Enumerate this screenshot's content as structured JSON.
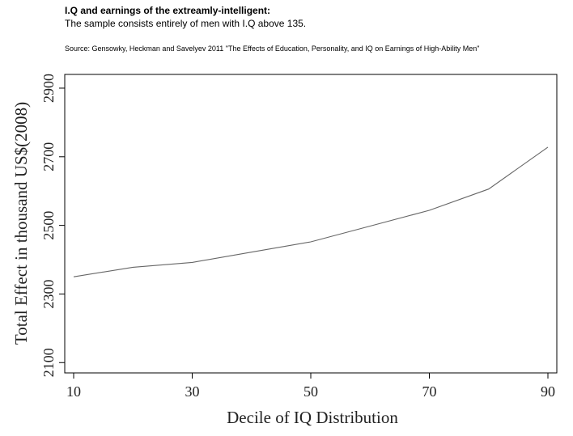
{
  "header": {
    "title": "I.Q and earnings of the extreamly-intelligent:",
    "subtitle": "The sample consists entirely of men with I.Q above 135.",
    "source": "Source: Gensowky, Heckman and Savelyev 2011 \"The Effects of Education, Personality, and IQ on Earnings of High-Ability Men\""
  },
  "chart_data": {
    "type": "line",
    "title": "I.Q and earnings of the extreamly-intelligent:",
    "subtitle": "The sample consists entirely of men with I.Q above 135.",
    "xlabel": "Decile of IQ Distribution",
    "ylabel": "Total Effect in thousand US$(2008)",
    "xlim": [
      8.5,
      91.5
    ],
    "ylim": [
      2070,
      2940
    ],
    "xticks": [
      10,
      30,
      50,
      70,
      90
    ],
    "yticks": [
      2100,
      2300,
      2500,
      2700,
      2900
    ],
    "grid": false,
    "line_color": "#666666",
    "series": [
      {
        "x": [
          10,
          20,
          30,
          40,
          50,
          60,
          70,
          80,
          90
        ],
        "y": [
          2350,
          2378,
          2392,
          2422,
          2452,
          2498,
          2544,
          2606,
          2728
        ]
      }
    ]
  }
}
